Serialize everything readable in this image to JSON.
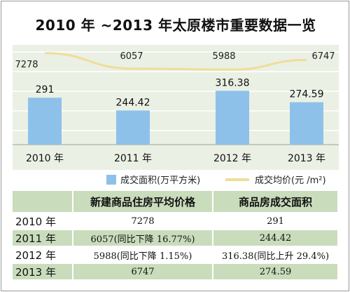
{
  "title": "2010 年 ~2013 年太原楼市重要数据一览",
  "chart_data": {
    "type": "bar+line",
    "categories": [
      "2010 年",
      "2011 年",
      "2012 年",
      "2013 年"
    ],
    "series": [
      {
        "name": "成交面积(万平方米)",
        "type": "bar",
        "values": [
          291,
          244.42,
          316.38,
          274.59
        ],
        "labels": [
          "291",
          "244.42",
          "316.38",
          "274.59"
        ],
        "color": "#8ec1ea"
      },
      {
        "name": "成交均价(元 /m²)",
        "type": "line",
        "values": [
          7278,
          6057,
          5988,
          6747
        ],
        "labels": [
          "7278",
          "6057",
          "5988",
          "6747"
        ],
        "color": "#f1dc9c"
      }
    ],
    "grid": true,
    "legend": "bottom"
  },
  "legend": {
    "bar_label": "成交面积(万平方米)",
    "line_label": "成交均价(元 /m²)"
  },
  "table": {
    "headers": [
      "",
      "新建商品住房平均价格",
      "商品房成交面积"
    ],
    "rows": [
      {
        "year": "2010 年",
        "price": "7278",
        "area": "291"
      },
      {
        "year": "2011 年",
        "price": "6057(同比下降 16.77%)",
        "area": "244.42"
      },
      {
        "year": "2012 年",
        "price": "5988(同比下降 1.15%)",
        "area": "316.38(同比上升 29.4%)"
      },
      {
        "year": "2013 年",
        "price": "6747",
        "area": "274.59"
      }
    ]
  },
  "colors": {
    "bar": "#8ec1ea",
    "line": "#f1dc9c",
    "chart_bg": "#eaf0e4",
    "table_shade": "#c9dcbc"
  }
}
